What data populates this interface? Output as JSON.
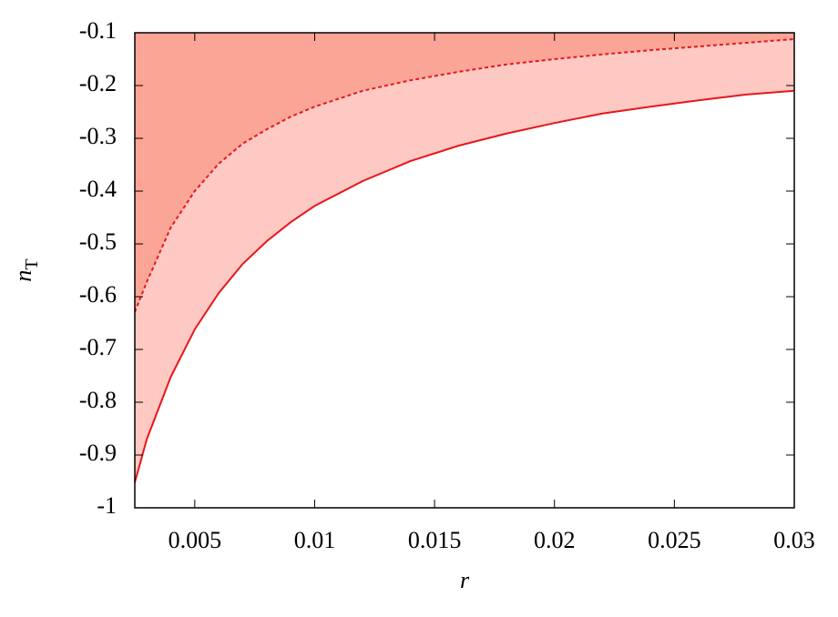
{
  "chart_data": {
    "type": "line",
    "xlabel": "r",
    "ylabel": {
      "main": "n",
      "sub": "T"
    },
    "x": [
      0.0025,
      0.003,
      0.004,
      0.005,
      0.006,
      0.007,
      0.008,
      0.009,
      0.01,
      0.012,
      0.014,
      0.016,
      0.018,
      0.02,
      0.022,
      0.024,
      0.026,
      0.028,
      0.03
    ],
    "series": [
      {
        "color": "#e8161b",
        "dash": true,
        "fill": "#fba597",
        "values": [
          -0.629,
          -0.572,
          -0.469,
          -0.4,
          -0.348,
          -0.31,
          -0.283,
          -0.259,
          -0.24,
          -0.21,
          -0.19,
          -0.174,
          -0.16,
          -0.15,
          -0.141,
          -0.133,
          -0.126,
          -0.119,
          -0.112
        ]
      },
      {
        "color": "#e8161b",
        "dash": false,
        "fill": "#fdc9c2",
        "values": [
          -0.952,
          -0.87,
          -0.752,
          -0.662,
          -0.593,
          -0.538,
          -0.495,
          -0.459,
          -0.428,
          -0.381,
          -0.343,
          -0.314,
          -0.291,
          -0.271,
          -0.253,
          -0.24,
          -0.228,
          -0.217,
          -0.21
        ]
      }
    ],
    "xlim": [
      0.0025,
      0.03
    ],
    "xticks": [
      0.005,
      0.01,
      0.015,
      0.02,
      0.025,
      0.03
    ],
    "ylim": [
      -1,
      -0.1
    ],
    "yticks": [
      -1,
      -0.9,
      -0.8,
      -0.7,
      -0.6,
      -0.5,
      -0.4,
      -0.3,
      -0.2,
      -0.1
    ]
  }
}
